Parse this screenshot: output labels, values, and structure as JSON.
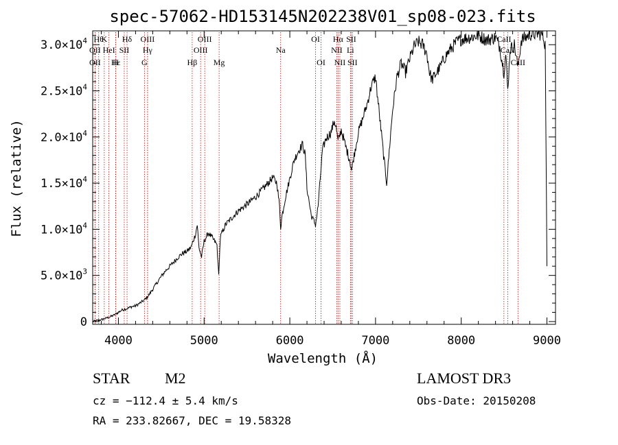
{
  "chart_data": {
    "type": "line",
    "title": "spec-57062-HD153145N202238V01_sp08-023.fits",
    "xlabel": "Wavelength (Å)",
    "ylabel": "Flux (relative)",
    "xlim": [
      3700,
      9100
    ],
    "ylim": [
      -300,
      31500
    ],
    "xticks": [
      {
        "value": 4000,
        "label": "4000"
      },
      {
        "value": 5000,
        "label": "5000"
      },
      {
        "value": 6000,
        "label": "6000"
      },
      {
        "value": 7000,
        "label": "7000"
      },
      {
        "value": 8000,
        "label": "8000"
      },
      {
        "value": 9000,
        "label": "9000"
      }
    ],
    "yticks": [
      {
        "value": 0,
        "label": "0"
      },
      {
        "value": 5000,
        "label": "5.0×10",
        "exp": "3"
      },
      {
        "value": 10000,
        "label": "1.0×10",
        "exp": "4"
      },
      {
        "value": 15000,
        "label": "1.5×10",
        "exp": "4"
      },
      {
        "value": 20000,
        "label": "2.0×10",
        "exp": "4"
      },
      {
        "value": 25000,
        "label": "2.5×10",
        "exp": "4"
      },
      {
        "value": 30000,
        "label": "3.0×10",
        "exp": "4"
      }
    ],
    "series": [
      {
        "name": "spectrum",
        "points": [
          [
            3700,
            0
          ],
          [
            3800,
            200
          ],
          [
            3900,
            500
          ],
          [
            3950,
            700
          ],
          [
            4000,
            1000
          ],
          [
            4050,
            1300
          ],
          [
            4100,
            1400
          ],
          [
            4150,
            1600
          ],
          [
            4200,
            1700
          ],
          [
            4250,
            2000
          ],
          [
            4300,
            2300
          ],
          [
            4350,
            2800
          ],
          [
            4400,
            3500
          ],
          [
            4450,
            4200
          ],
          [
            4500,
            4900
          ],
          [
            4550,
            5500
          ],
          [
            4600,
            6000
          ],
          [
            4650,
            6500
          ],
          [
            4700,
            7000
          ],
          [
            4750,
            7400
          ],
          [
            4800,
            7600
          ],
          [
            4850,
            8100
          ],
          [
            4900,
            9500
          ],
          [
            4920,
            10500
          ],
          [
            4940,
            8000
          ],
          [
            4970,
            7000
          ],
          [
            5000,
            8700
          ],
          [
            5050,
            9600
          ],
          [
            5100,
            9000
          ],
          [
            5150,
            8300
          ],
          [
            5170,
            5000
          ],
          [
            5190,
            9200
          ],
          [
            5250,
            10500
          ],
          [
            5300,
            11000
          ],
          [
            5400,
            12000
          ],
          [
            5500,
            12700
          ],
          [
            5600,
            13500
          ],
          [
            5700,
            14500
          ],
          [
            5800,
            15600
          ],
          [
            5850,
            15000
          ],
          [
            5880,
            12500
          ],
          [
            5893,
            10200
          ],
          [
            5910,
            11500
          ],
          [
            5950,
            13500
          ],
          [
            6000,
            15500
          ],
          [
            6050,
            17500
          ],
          [
            6100,
            18500
          ],
          [
            6150,
            19200
          ],
          [
            6180,
            18000
          ],
          [
            6200,
            14500
          ],
          [
            6250,
            11500
          ],
          [
            6300,
            10500
          ],
          [
            6330,
            12500
          ],
          [
            6380,
            18500
          ],
          [
            6420,
            19800
          ],
          [
            6480,
            20500
          ],
          [
            6520,
            21800
          ],
          [
            6540,
            21000
          ],
          [
            6563,
            19500
          ],
          [
            6600,
            20800
          ],
          [
            6650,
            19000
          ],
          [
            6700,
            17500
          ],
          [
            6720,
            16400
          ],
          [
            6750,
            18000
          ],
          [
            6800,
            20500
          ],
          [
            6850,
            22000
          ],
          [
            6900,
            23500
          ],
          [
            6950,
            25500
          ],
          [
            7000,
            26500
          ],
          [
            7050,
            22000
          ],
          [
            7100,
            17500
          ],
          [
            7130,
            15000
          ],
          [
            7160,
            18500
          ],
          [
            7200,
            23000
          ],
          [
            7250,
            26500
          ],
          [
            7300,
            28000
          ],
          [
            7350,
            27000
          ],
          [
            7400,
            28500
          ],
          [
            7450,
            29800
          ],
          [
            7500,
            30300
          ],
          [
            7550,
            30000
          ],
          [
            7600,
            29000
          ],
          [
            7630,
            27000
          ],
          [
            7660,
            26200
          ],
          [
            7700,
            26800
          ],
          [
            7750,
            27500
          ],
          [
            7800,
            28500
          ],
          [
            7850,
            29200
          ],
          [
            7900,
            29800
          ],
          [
            7950,
            30300
          ],
          [
            8000,
            30600
          ],
          [
            8100,
            30800
          ],
          [
            8200,
            31000
          ],
          [
            8300,
            30500
          ],
          [
            8400,
            30800
          ],
          [
            8450,
            29800
          ],
          [
            8498,
            27000
          ],
          [
            8520,
            29000
          ],
          [
            8542,
            25000
          ],
          [
            8570,
            29500
          ],
          [
            8620,
            30000
          ],
          [
            8662,
            27500
          ],
          [
            8700,
            30500
          ],
          [
            8800,
            31100
          ],
          [
            8900,
            31200
          ],
          [
            8950,
            31100
          ],
          [
            8980,
            30000
          ],
          [
            9000,
            6000
          ]
        ]
      }
    ],
    "lines": [
      {
        "x": 3770,
        "label": "Hθ",
        "row": 1
      },
      {
        "x": 3835,
        "label": "K",
        "row": 1
      },
      {
        "x": 4101,
        "label": "Hδ",
        "row": 1
      },
      {
        "x": 4340,
        "label": "OIII",
        "row": 1
      },
      {
        "x": 5007,
        "label": "OIII",
        "row": 1
      },
      {
        "x": 6300,
        "label": "OI",
        "row": 1
      },
      {
        "x": 6563,
        "label": "Hα",
        "row": 1
      },
      {
        "x": 6716,
        "label": "SII",
        "row": 1
      },
      {
        "x": 8498,
        "label": "CaII",
        "row": 1
      },
      {
        "x": 3727,
        "label": "OII",
        "row": 2
      },
      {
        "x": 3889,
        "label": "HeI",
        "row": 2
      },
      {
        "x": 4068,
        "label": "SII",
        "row": 2
      },
      {
        "x": 4340,
        "label": "Hγ",
        "row": 2
      },
      {
        "x": 4959,
        "label": "OIII",
        "row": 2
      },
      {
        "x": 5893,
        "label": "Na",
        "row": 2
      },
      {
        "x": 6548,
        "label": "NII",
        "row": 2
      },
      {
        "x": 6707,
        "label": "Li",
        "row": 2
      },
      {
        "x": 8542,
        "label": "CaII",
        "row": 2
      },
      {
        "x": 3727,
        "label": "OII",
        "row": 3
      },
      {
        "x": 3970,
        "label": "Hε",
        "row": 3
      },
      {
        "x": 3968,
        "label": "H",
        "row": 3
      },
      {
        "x": 4304,
        "label": "G",
        "row": 3
      },
      {
        "x": 4861,
        "label": "Hβ",
        "row": 3
      },
      {
        "x": 5175,
        "label": "Mg",
        "row": 3
      },
      {
        "x": 6364,
        "label": "OI",
        "row": 3
      },
      {
        "x": 6584,
        "label": "NII",
        "row": 3
      },
      {
        "x": 6731,
        "label": "SII",
        "row": 3
      },
      {
        "x": 8662,
        "label": "CaII",
        "row": 3
      }
    ],
    "line_color": "#cc0000"
  },
  "info": {
    "obj_class": "STAR",
    "subclass": "M2",
    "survey": "LAMOST DR3",
    "redshift": "cz = −112.4 ± 5.4 km/s",
    "obs_date": "Obs-Date: 20150208",
    "coords": "RA = 233.82667, DEC =  19.58328"
  }
}
